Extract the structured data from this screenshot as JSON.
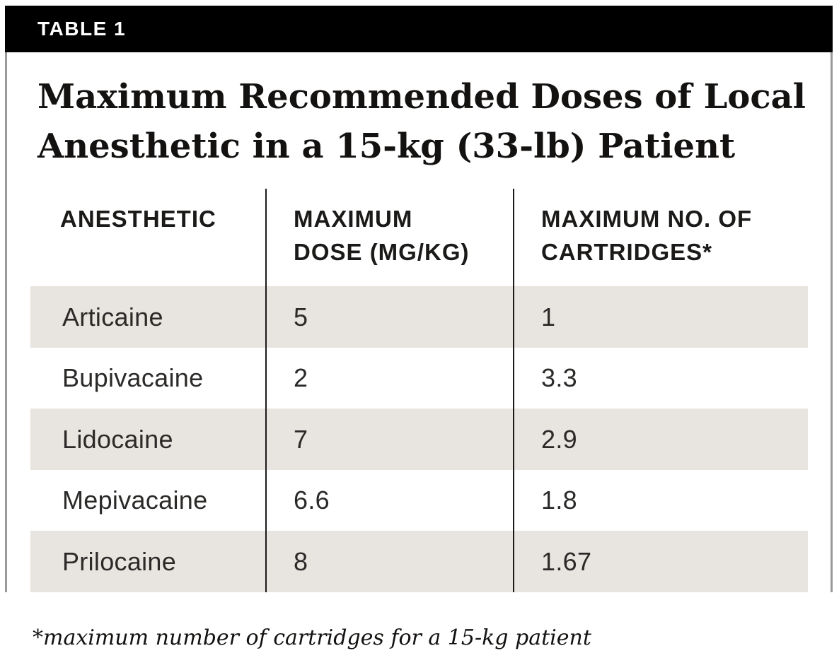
{
  "table_label": "TABLE 1",
  "title": {
    "line1": "Maximum Recommended Doses of Local",
    "line2": "Anesthetic in a 15-kg (33-lb) Patient"
  },
  "table": {
    "columns": [
      {
        "line1": "ANESTHETIC",
        "line2": ""
      },
      {
        "line1": "MAXIMUM",
        "line2": "DOSE (MG/KG)"
      },
      {
        "line1": "MAXIMUM NO. OF",
        "line2": "CARTRIDGES*"
      }
    ],
    "rows": [
      {
        "anesthetic": "Articaine",
        "max_dose_mg_kg": "5",
        "max_cartridges": "1"
      },
      {
        "anesthetic": "Bupivacaine",
        "max_dose_mg_kg": "2",
        "max_cartridges": "3.3"
      },
      {
        "anesthetic": "Lidocaine",
        "max_dose_mg_kg": "7",
        "max_cartridges": "2.9"
      },
      {
        "anesthetic": "Mepivacaine",
        "max_dose_mg_kg": "6.6",
        "max_cartridges": "1.8"
      },
      {
        "anesthetic": "Prilocaine",
        "max_dose_mg_kg": "8",
        "max_cartridges": "1.67"
      }
    ]
  },
  "footnote": "*maximum number of cartridges for a 15-kg patient",
  "colors": {
    "header_bar": "#000000",
    "bar_text": "#ffffff",
    "row_shade": "#e8e4e0",
    "outer_border": "#9a9a9a",
    "divider": "#1c1b1a",
    "title_text": "#141210",
    "header_text": "#1b1a18",
    "body_text": "#2b2a28"
  }
}
